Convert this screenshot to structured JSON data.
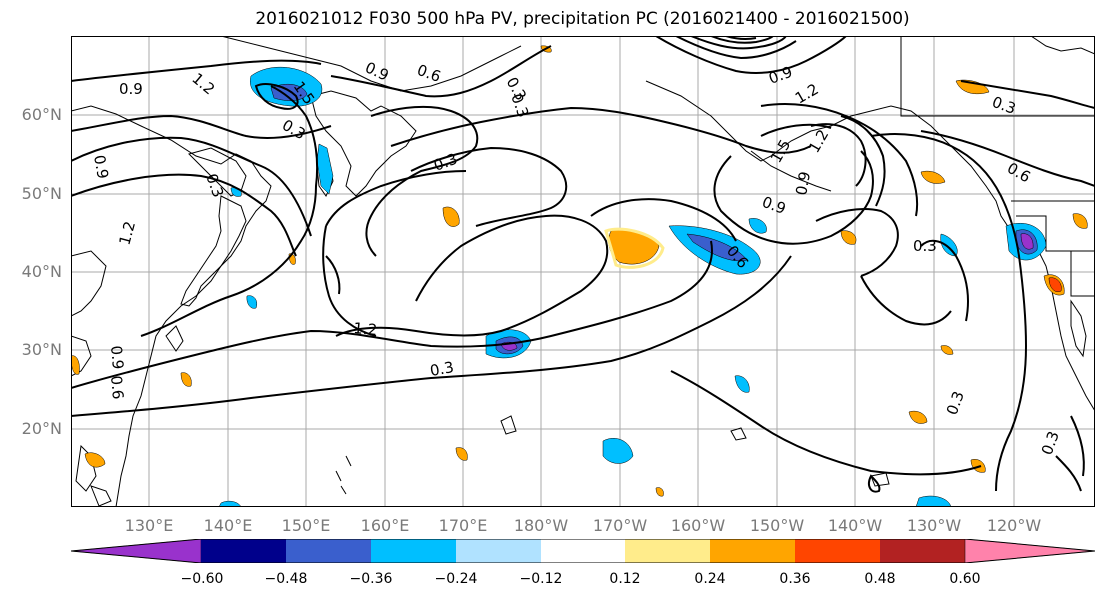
{
  "title": "2016021012 F030 500 hPa PV, precipitation PC (2016021400 - 2016021500)",
  "lat_labels": [
    "60°N",
    "50°N",
    "40°N",
    "30°N",
    "20°N"
  ],
  "lon_labels": [
    "130°E",
    "140°E",
    "150°E",
    "160°E",
    "170°E",
    "180°W",
    "170°W",
    "160°W",
    "150°W",
    "140°W",
    "130°W",
    "120°W"
  ],
  "contour_labels": [
    "0.9",
    "1.2",
    "1.5",
    "0.9",
    "0.6",
    "0.3",
    "0.3",
    "0.9",
    "1.2",
    "0.3",
    "1.2",
    "0.9",
    "0.6",
    "0.3",
    "0.9",
    "1.2",
    "1.5",
    "0.9",
    "1.2",
    "0.6",
    "0.3",
    "0.6",
    "0.3",
    "0.3",
    "0.3",
    "0.3",
    "0.9",
    "0.3"
  ],
  "colorbar": {
    "colors": [
      "#9932cc",
      "#00008b",
      "#3a5fcd",
      "#00bfff",
      "#b0e2ff",
      "#ffffff",
      "#ffec8b",
      "#ffa500",
      "#ff4500",
      "#b22222",
      "#ff82ab"
    ],
    "tick_labels": [
      "−0.60",
      "−0.48",
      "−0.36",
      "−0.24",
      "−0.12",
      "0.12",
      "0.24",
      "0.36",
      "0.48",
      "0.60"
    ]
  },
  "legend_colors": {
    "orange": "#ffa500",
    "light_yellow": "#ffec8b",
    "cyan": "#00bfff",
    "blue": "#3a5fcd",
    "purple": "#9932cc",
    "red": "#ff4500"
  }
}
